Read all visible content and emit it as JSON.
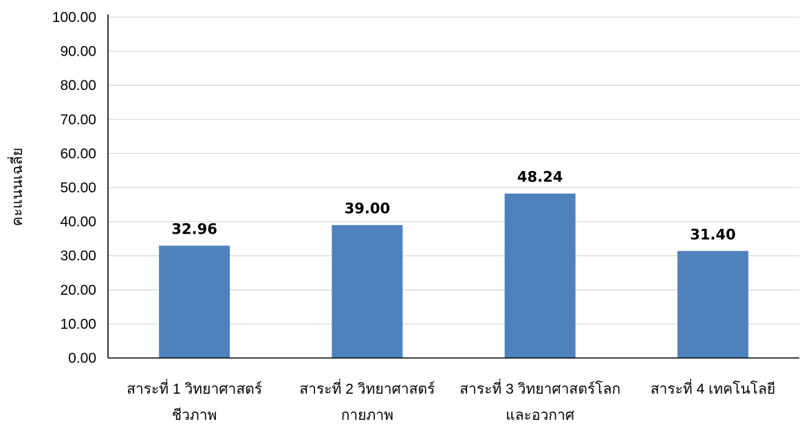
{
  "chart_data": {
    "type": "bar",
    "title": "",
    "xlabel": "",
    "ylabel": "คะแนนเฉลี่ย",
    "ylim": [
      0,
      100
    ],
    "y_ticks": [
      "0.00",
      "10.00",
      "20.00",
      "30.00",
      "40.00",
      "50.00",
      "60.00",
      "70.00",
      "80.00",
      "90.00",
      "100.00"
    ],
    "categories": [
      [
        "สาระที่ 1 วิทยาศาสตร์",
        "ชีวภาพ"
      ],
      [
        "สาระที่ 2 วิทยาศาสตร์",
        "กายภาพ"
      ],
      [
        "สาระที่ 3 วิทยาศาสตร์โลก",
        "และอวกาศ"
      ],
      [
        "สาระที่ 4 เทคโนโลยี"
      ]
    ],
    "values": [
      32.96,
      39.0,
      48.24,
      31.4
    ],
    "data_labels": [
      "32.96",
      "39.00",
      "48.24",
      "31.40"
    ],
    "grid": true,
    "legend": "none",
    "bar_color": "#4f81bd"
  }
}
